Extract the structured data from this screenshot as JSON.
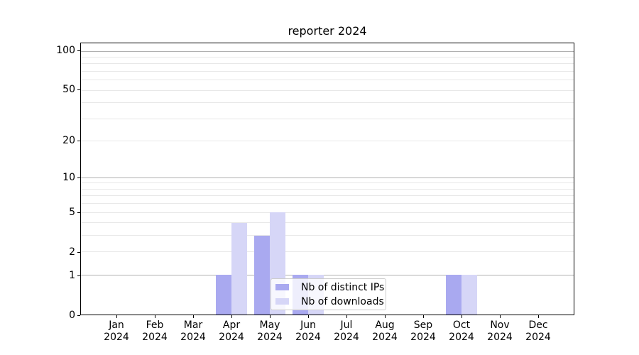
{
  "chart_data": {
    "type": "bar",
    "title": "reporter 2024",
    "categories": [
      "Jan\n2024",
      "Feb\n2024",
      "Mar\n2024",
      "Apr\n2024",
      "May\n2024",
      "Jun\n2024",
      "Jul\n2024",
      "Aug\n2024",
      "Sep\n2024",
      "Oct\n2024",
      "Nov\n2024",
      "Dec\n2024"
    ],
    "series": [
      {
        "name": "Nb of distinct IPs",
        "color": "#a9a9f0",
        "values": [
          0,
          0,
          0,
          1,
          3,
          1,
          0,
          0,
          0,
          1,
          0,
          0
        ]
      },
      {
        "name": "Nb of downloads",
        "color": "#d6d6f7",
        "values": [
          0,
          0,
          0,
          4,
          5,
          1,
          0,
          0,
          0,
          1,
          0,
          0
        ]
      }
    ],
    "yticks": [
      0,
      1,
      2,
      5,
      10,
      20,
      50,
      100
    ],
    "y_major_gridlines": [
      1,
      10,
      100
    ],
    "y_minor_gridlines": [
      2,
      3,
      4,
      5,
      6,
      7,
      8,
      9,
      20,
      30,
      40,
      50,
      60,
      70,
      80,
      90
    ],
    "y_scale": "log10(1+y)",
    "ylim": [
      0,
      115
    ],
    "xlabel": "",
    "ylabel": "",
    "grid": true,
    "legend_position": "inside lower center-right",
    "colors": {
      "axis": "#000000",
      "major_grid": "#b0b0b0",
      "minor_grid": "#e8e8e8",
      "legend_border": "#cccccc",
      "background": "#ffffff"
    }
  }
}
